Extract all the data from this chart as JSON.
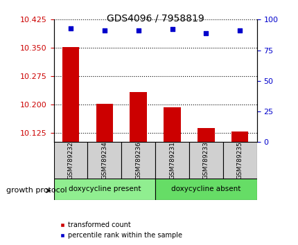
{
  "title": "GDS4096 / 7958819",
  "samples": [
    "GSM789232",
    "GSM789234",
    "GSM789236",
    "GSM789231",
    "GSM789233",
    "GSM789235"
  ],
  "bar_values": [
    10.352,
    10.202,
    10.232,
    10.192,
    10.138,
    10.128
  ],
  "bar_baseline": 10.1,
  "percentile_values": [
    93,
    91,
    91,
    92,
    89,
    91
  ],
  "ylim_left": [
    10.1,
    10.425
  ],
  "ylim_right": [
    0,
    100
  ],
  "yticks_left": [
    10.125,
    10.2,
    10.275,
    10.35,
    10.425
  ],
  "yticks_right": [
    0,
    25,
    50,
    75,
    100
  ],
  "bar_color": "#cc0000",
  "dot_color": "#0000cc",
  "group1_label": "doxycycline present",
  "group2_label": "doxycycline absent",
  "group1_color": "#90ee90",
  "group2_color": "#66dd66",
  "group_label": "growth protocol",
  "left_axis_color": "#cc0000",
  "right_axis_color": "#0000cc",
  "n_group1": 3,
  "n_group2": 3
}
